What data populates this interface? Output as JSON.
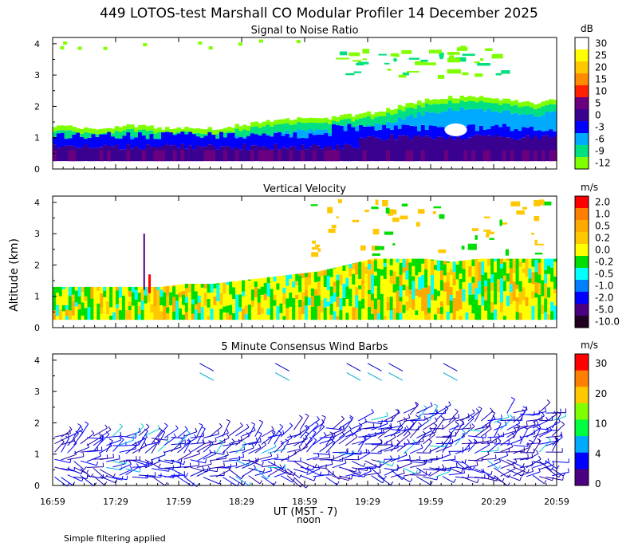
{
  "title": "449 LOTOS-test Marshall CO Modular Profiler 14 December 2025",
  "y_axis_label": "Altitude (km)",
  "x_axis_label": "UT  (MST - 7)",
  "x_axis_sublabel": "noon",
  "footer_note": "Simple filtering applied",
  "chart_data": [
    {
      "type": "heatmap",
      "title": "Signal to Noise Ratio",
      "x_ticks": [
        "16:59",
        "17:29",
        "17:59",
        "18:29",
        "18:59",
        "19:29",
        "19:59",
        "20:29",
        "20:59"
      ],
      "y_ticks": [
        "0",
        "1",
        "2",
        "3",
        "4"
      ],
      "ylim": [
        0,
        4.2
      ],
      "colorbar": {
        "unit": "dB",
        "labels": [
          "30",
          "25",
          "20",
          "15",
          "10",
          "5",
          "0",
          "-3",
          "-6",
          "-9",
          "-12"
        ],
        "colors": [
          "#ffffff",
          "#ffff00",
          "#ffc800",
          "#ff8c00",
          "#ff2000",
          "#6a0080",
          "#3a0090",
          "#0000ff",
          "#00aaff",
          "#00e080",
          "#80ff00"
        ]
      },
      "cloud_top_km": [
        1.4,
        1.3,
        1.3,
        1.4,
        1.3,
        1.3,
        1.3,
        1.4,
        1.5,
        1.6,
        1.6,
        1.7,
        1.8,
        2.0,
        2.2,
        2.3,
        2.3,
        2.2,
        2.1,
        2.2
      ],
      "high_echo_km": [
        3.0,
        4.0
      ]
    },
    {
      "type": "heatmap",
      "title": "Vertical Velocity",
      "x_ticks": [
        "16:59",
        "17:29",
        "17:59",
        "18:29",
        "18:59",
        "19:29",
        "19:59",
        "20:29",
        "20:59"
      ],
      "y_ticks": [
        "0",
        "1",
        "2",
        "3",
        "4"
      ],
      "ylim": [
        0,
        4.2
      ],
      "colorbar": {
        "unit": "m/s",
        "labels": [
          "2.0",
          "1.0",
          "0.5",
          "0.2",
          "0.0",
          "-0.2",
          "-0.5",
          "-1.0",
          "-2.0",
          "-5.0",
          "-10.0"
        ],
        "colors": [
          "#ff0000",
          "#ff8000",
          "#ffaa00",
          "#ffc800",
          "#ffff00",
          "#00dd00",
          "#00ffff",
          "#0080ff",
          "#0000ff",
          "#4b0082",
          "#200020"
        ]
      },
      "data_top_km": [
        1.3,
        1.3,
        1.3,
        1.3,
        1.3,
        1.4,
        1.4,
        1.5,
        1.6,
        1.7,
        1.8,
        2.0,
        2.2,
        2.2,
        2.2,
        2.1,
        2.2,
        2.2,
        2.2,
        2.2
      ]
    },
    {
      "type": "scatter",
      "title": "5 Minute Consensus Wind Barbs",
      "x_ticks": [
        "16:59",
        "17:29",
        "17:59",
        "18:29",
        "18:59",
        "19:29",
        "19:59",
        "20:29",
        "20:59"
      ],
      "y_ticks": [
        "0",
        "1",
        "2",
        "3",
        "4"
      ],
      "ylim": [
        0,
        4.2
      ],
      "colorbar": {
        "unit": "m/s",
        "labels": [
          "30",
          "20",
          "10",
          "4",
          "0"
        ],
        "colors": [
          "#ff0000",
          "#ff8000",
          "#ffc800",
          "#80ff00",
          "#00ff40",
          "#00aaff",
          "#0000ff",
          "#4b0082"
        ]
      },
      "barb_top_km": [
        1.6,
        1.6,
        1.6,
        1.6,
        1.7,
        1.7,
        1.8,
        1.8,
        1.8,
        1.8,
        1.9,
        2.0,
        2.1,
        2.3,
        2.5,
        2.2,
        2.2,
        2.3,
        2.4,
        2.3
      ],
      "high_barb_times": [
        "18:09",
        "18:45",
        "19:19",
        "19:29",
        "19:39",
        "20:05"
      ]
    }
  ]
}
